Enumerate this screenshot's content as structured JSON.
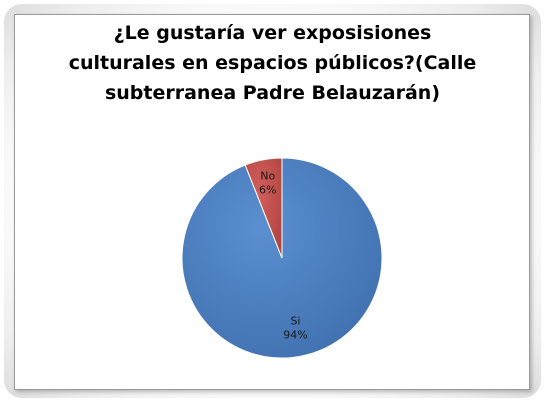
{
  "chart_data": {
    "type": "pie",
    "title_lines": [
      "¿Le gustaría ver exposisiones",
      "culturales en espacios públicos?(Calle",
      "subterranea Padre Belauzarán)"
    ],
    "slices": [
      {
        "name": "Si",
        "value": 94,
        "label": "94%",
        "color": "#4a7ebb"
      },
      {
        "name": "No",
        "value": 6,
        "label": "6%",
        "color": "#c0504d"
      }
    ],
    "legend": "none"
  }
}
